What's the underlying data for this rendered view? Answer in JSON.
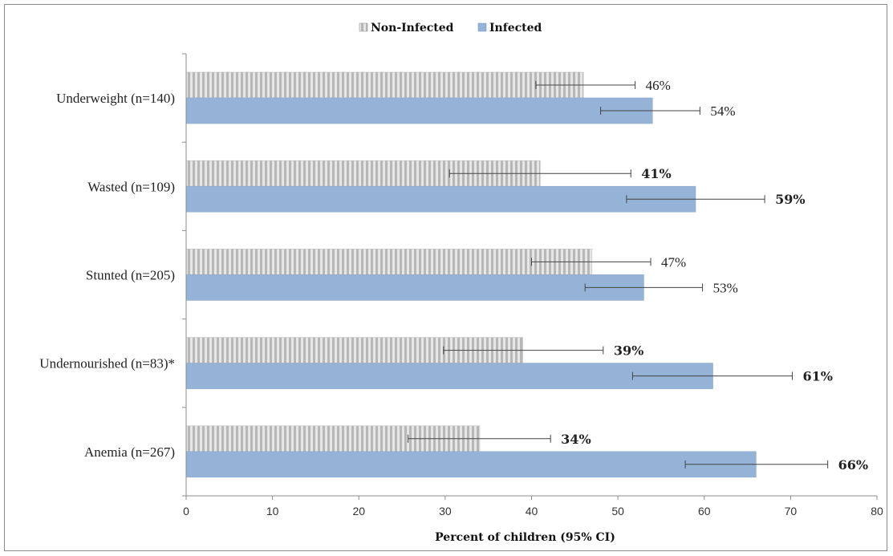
{
  "chart_data": {
    "type": "bar",
    "orientation": "horizontal",
    "categories": [
      "Underweight (n=140)",
      "Wasted (n=109)",
      "Stunted (n=205)",
      "Undernourished (n=83)*",
      "Anemia (n=267)"
    ],
    "series": [
      {
        "name": "Non-Infected",
        "color": "#c9c9c9",
        "pattern": "vertical-stripes",
        "values": [
          46,
          41,
          47,
          39,
          34
        ],
        "ci_low": [
          40.5,
          30.5,
          40,
          29.8,
          25.7
        ],
        "ci_high": [
          52,
          51.5,
          53.8,
          48.3,
          42.2
        ],
        "labels": [
          "46%",
          "41%",
          "47%",
          "39%",
          "34%"
        ],
        "labels_bold": [
          false,
          true,
          false,
          true,
          true
        ]
      },
      {
        "name": "Infected",
        "color": "#95b3d7",
        "values": [
          54,
          59,
          53,
          61,
          66
        ],
        "ci_low": [
          48,
          51,
          46.2,
          51.7,
          57.8
        ],
        "ci_high": [
          59.5,
          67,
          59.8,
          70.2,
          74.3
        ],
        "labels": [
          "54%",
          "59%",
          "53%",
          "61%",
          "66%"
        ],
        "labels_bold": [
          false,
          true,
          false,
          true,
          true
        ]
      }
    ],
    "xlabel": "Percent of children (95% CI)",
    "xlim": [
      0,
      80
    ],
    "xticks": [
      0,
      10,
      20,
      30,
      40,
      50,
      60,
      70,
      80
    ],
    "grid": false,
    "legend": "top-center"
  }
}
